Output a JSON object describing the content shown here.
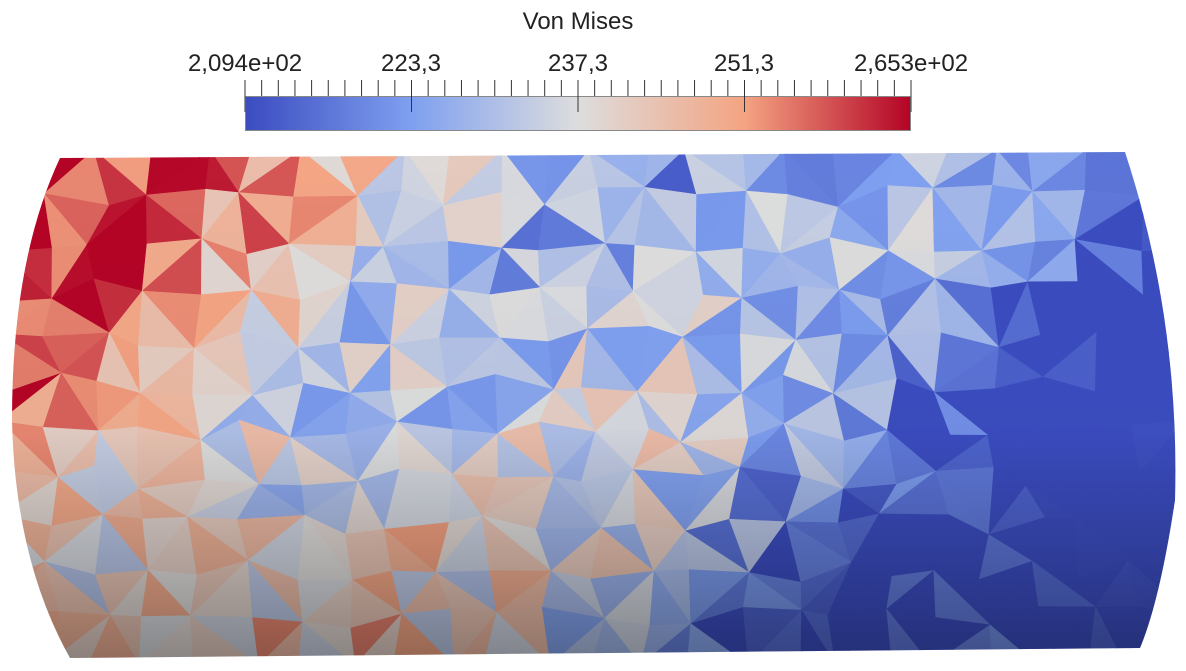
{
  "legend": {
    "title": "Von Mises",
    "ticks": [
      "2,094e+02",
      "223,3",
      "237,3",
      "251,3",
      "2,653e+02"
    ],
    "colormap": [
      "#3b4cc0",
      "#7fa0f0",
      "#dddddd",
      "#f4a482",
      "#b40426"
    ]
  }
}
